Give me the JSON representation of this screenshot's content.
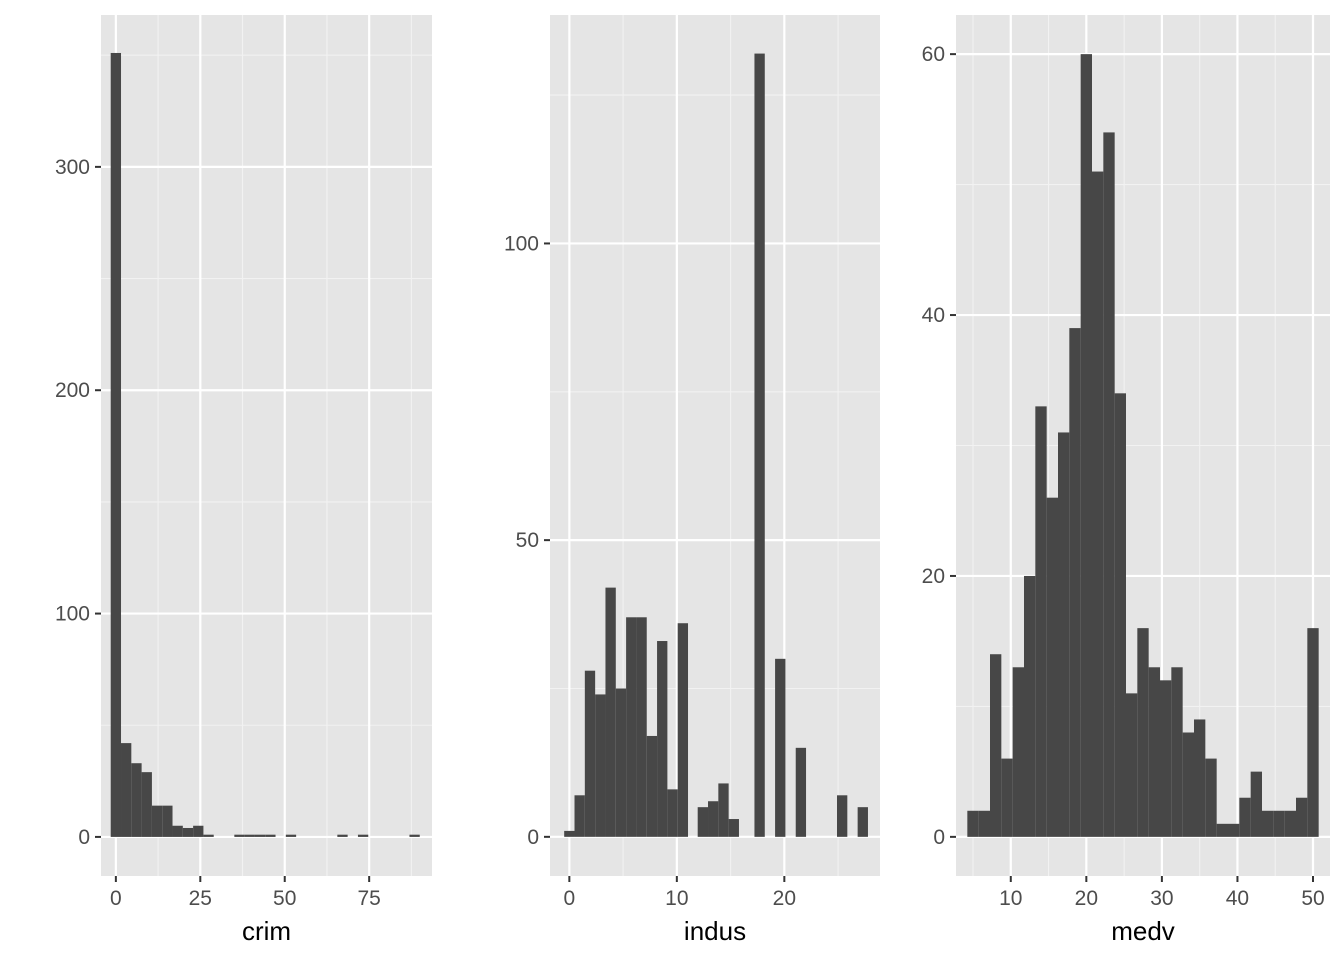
{
  "colors": {
    "panel_background": "#E5E5E5",
    "grid_major": "#FFFFFF",
    "grid_minor": "#F2F2F2",
    "bar_fill": "#474747",
    "tick_mark": "#333333",
    "tick_text": "#4D4D4D"
  },
  "chart_data": [
    {
      "type": "bar",
      "subtype": "histogram",
      "title": "",
      "xlabel": "crim",
      "ylabel": "",
      "grid": true,
      "xlim": [
        -4.4,
        93.6
      ],
      "ylim": [
        -17.5,
        368
      ],
      "xticks": [
        0,
        25,
        50,
        75
      ],
      "yticks": [
        0,
        100,
        200,
        300
      ],
      "bin_width": 3.05,
      "bins": [
        {
          "x0": -1.525,
          "x1": 1.525,
          "count": 351
        },
        {
          "x0": 1.525,
          "x1": 4.575,
          "count": 42
        },
        {
          "x0": 4.575,
          "x1": 7.625,
          "count": 33
        },
        {
          "x0": 7.625,
          "x1": 10.675,
          "count": 29
        },
        {
          "x0": 10.675,
          "x1": 13.725,
          "count": 14
        },
        {
          "x0": 13.725,
          "x1": 16.775,
          "count": 14
        },
        {
          "x0": 16.775,
          "x1": 19.825,
          "count": 5
        },
        {
          "x0": 19.825,
          "x1": 22.875,
          "count": 4
        },
        {
          "x0": 22.875,
          "x1": 25.925,
          "count": 5
        },
        {
          "x0": 25.925,
          "x1": 28.975,
          "count": 1
        },
        {
          "x0": 35.075,
          "x1": 38.125,
          "count": 1
        },
        {
          "x0": 38.125,
          "x1": 41.175,
          "count": 1
        },
        {
          "x0": 41.175,
          "x1": 44.225,
          "count": 1
        },
        {
          "x0": 44.225,
          "x1": 47.275,
          "count": 1
        },
        {
          "x0": 50.325,
          "x1": 53.375,
          "count": 1
        },
        {
          "x0": 65.575,
          "x1": 68.625,
          "count": 1
        },
        {
          "x0": 71.675,
          "x1": 74.725,
          "count": 1
        },
        {
          "x0": 86.925,
          "x1": 89.975,
          "count": 1
        }
      ]
    },
    {
      "type": "bar",
      "subtype": "histogram",
      "title": "",
      "xlabel": "indus",
      "ylabel": "",
      "grid": true,
      "xlim": [
        -1.8,
        28.9
      ],
      "ylim": [
        -6.6,
        138.5
      ],
      "xticks": [
        0,
        10,
        20
      ],
      "yticks": [
        0,
        50,
        100
      ],
      "bin_width": 0.96,
      "bins": [
        {
          "x0": -0.48,
          "x1": 0.48,
          "count": 1
        },
        {
          "x0": 0.48,
          "x1": 1.44,
          "count": 7
        },
        {
          "x0": 1.44,
          "x1": 2.4,
          "count": 28
        },
        {
          "x0": 2.4,
          "x1": 3.36,
          "count": 24
        },
        {
          "x0": 3.36,
          "x1": 4.32,
          "count": 42
        },
        {
          "x0": 4.32,
          "x1": 5.28,
          "count": 25
        },
        {
          "x0": 5.28,
          "x1": 6.24,
          "count": 37
        },
        {
          "x0": 6.24,
          "x1": 7.2,
          "count": 37
        },
        {
          "x0": 7.2,
          "x1": 8.16,
          "count": 17
        },
        {
          "x0": 8.16,
          "x1": 9.12,
          "count": 33
        },
        {
          "x0": 9.12,
          "x1": 10.08,
          "count": 8
        },
        {
          "x0": 10.08,
          "x1": 11.04,
          "count": 36
        },
        {
          "x0": 11.94,
          "x1": 12.9,
          "count": 5
        },
        {
          "x0": 12.9,
          "x1": 13.86,
          "count": 6
        },
        {
          "x0": 13.86,
          "x1": 14.82,
          "count": 9
        },
        {
          "x0": 14.82,
          "x1": 15.78,
          "count": 3
        },
        {
          "x0": 17.22,
          "x1": 18.18,
          "count": 132
        },
        {
          "x0": 19.14,
          "x1": 20.1,
          "count": 30
        },
        {
          "x0": 21.06,
          "x1": 22.02,
          "count": 15
        },
        {
          "x0": 24.9,
          "x1": 25.86,
          "count": 7
        },
        {
          "x0": 26.82,
          "x1": 27.78,
          "count": 5
        }
      ]
    },
    {
      "type": "bar",
      "subtype": "histogram",
      "title": "",
      "xlabel": "medv",
      "ylabel": "",
      "grid": true,
      "xlim": [
        2.75,
        52.25
      ],
      "ylim": [
        -3.0,
        63.0
      ],
      "xticks": [
        10,
        20,
        30,
        40,
        50
      ],
      "yticks": [
        0,
        20,
        40,
        60
      ],
      "bin_width": 1.5,
      "bins": [
        {
          "x0": 4.25,
          "x1": 5.75,
          "count": 2
        },
        {
          "x0": 5.75,
          "x1": 7.25,
          "count": 2
        },
        {
          "x0": 7.25,
          "x1": 8.75,
          "count": 14
        },
        {
          "x0": 8.75,
          "x1": 10.25,
          "count": 6
        },
        {
          "x0": 10.25,
          "x1": 11.75,
          "count": 13
        },
        {
          "x0": 11.75,
          "x1": 13.25,
          "count": 20
        },
        {
          "x0": 13.25,
          "x1": 14.75,
          "count": 33
        },
        {
          "x0": 14.75,
          "x1": 16.25,
          "count": 26
        },
        {
          "x0": 16.25,
          "x1": 17.75,
          "count": 31
        },
        {
          "x0": 17.75,
          "x1": 19.25,
          "count": 39
        },
        {
          "x0": 19.25,
          "x1": 20.75,
          "count": 60
        },
        {
          "x0": 20.75,
          "x1": 22.25,
          "count": 51
        },
        {
          "x0": 22.25,
          "x1": 23.75,
          "count": 54
        },
        {
          "x0": 23.75,
          "x1": 25.25,
          "count": 34
        },
        {
          "x0": 25.25,
          "x1": 26.75,
          "count": 11
        },
        {
          "x0": 26.75,
          "x1": 28.25,
          "count": 16
        },
        {
          "x0": 28.25,
          "x1": 29.75,
          "count": 13
        },
        {
          "x0": 29.75,
          "x1": 31.25,
          "count": 12
        },
        {
          "x0": 31.25,
          "x1": 32.75,
          "count": 13
        },
        {
          "x0": 32.75,
          "x1": 34.25,
          "count": 8
        },
        {
          "x0": 34.25,
          "x1": 35.75,
          "count": 9
        },
        {
          "x0": 35.75,
          "x1": 37.25,
          "count": 6
        },
        {
          "x0": 37.25,
          "x1": 38.75,
          "count": 1
        },
        {
          "x0": 38.75,
          "x1": 40.25,
          "count": 1
        },
        {
          "x0": 40.25,
          "x1": 41.75,
          "count": 3
        },
        {
          "x0": 41.75,
          "x1": 43.25,
          "count": 5
        },
        {
          "x0": 43.25,
          "x1": 44.75,
          "count": 2
        },
        {
          "x0": 44.75,
          "x1": 46.25,
          "count": 2
        },
        {
          "x0": 46.25,
          "x1": 47.75,
          "count": 2
        },
        {
          "x0": 47.75,
          "x1": 49.25,
          "count": 3
        },
        {
          "x0": 49.25,
          "x1": 50.75,
          "count": 16
        }
      ]
    }
  ]
}
